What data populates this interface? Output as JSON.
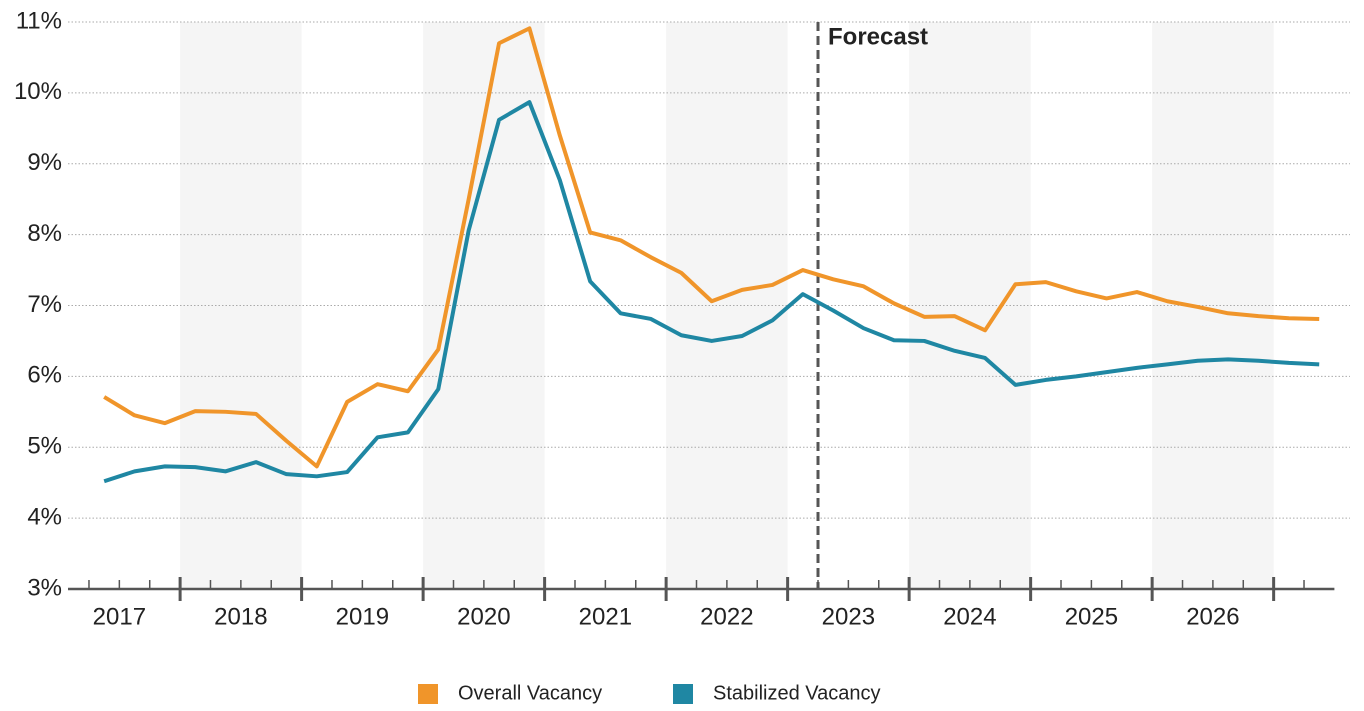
{
  "chart_data": {
    "type": "line",
    "annotation": "Forecast",
    "forecast_x": 2023.25,
    "x": [
      2017.375,
      2017.625,
      2017.875,
      2018.125,
      2018.375,
      2018.625,
      2018.875,
      2019.125,
      2019.375,
      2019.625,
      2019.875,
      2020.125,
      2020.375,
      2020.625,
      2020.875,
      2021.125,
      2021.375,
      2021.625,
      2021.875,
      2022.125,
      2022.375,
      2022.625,
      2022.875,
      2023.125,
      2023.375,
      2023.625,
      2023.875,
      2024.125,
      2024.375,
      2024.625,
      2024.875,
      2025.125,
      2025.375,
      2025.625,
      2025.875,
      2026.125,
      2026.375,
      2026.625,
      2026.875,
      2027.125,
      2027.375
    ],
    "series": [
      {
        "name": "Overall Vacancy",
        "color": "#f0952a",
        "values": [
          5.71,
          5.45,
          5.34,
          5.51,
          5.5,
          5.47,
          5.09,
          4.73,
          5.64,
          5.89,
          5.79,
          6.38,
          8.5,
          10.7,
          10.91,
          9.4,
          8.03,
          7.92,
          7.68,
          7.46,
          7.06,
          7.22,
          7.29,
          7.5,
          7.37,
          7.27,
          7.03,
          6.84,
          6.85,
          6.65,
          7.3,
          7.33,
          7.2,
          7.1,
          7.19,
          7.06,
          6.98,
          6.89,
          6.85,
          6.82,
          6.81
        ]
      },
      {
        "name": "Stabilized Vacancy",
        "color": "#1f87a3",
        "values": [
          4.52,
          4.66,
          4.73,
          4.72,
          4.66,
          4.79,
          4.62,
          4.59,
          4.65,
          5.14,
          5.21,
          5.82,
          8.06,
          9.62,
          9.87,
          8.77,
          7.34,
          6.89,
          6.81,
          6.58,
          6.5,
          6.57,
          6.79,
          7.16,
          6.93,
          6.68,
          6.51,
          6.5,
          6.36,
          6.26,
          5.88,
          5.95,
          6.0,
          6.06,
          6.12,
          6.17,
          6.22,
          6.24,
          6.22,
          6.19,
          6.17
        ]
      }
    ],
    "categories": [
      "2017",
      "2018",
      "2019",
      "2020",
      "2021",
      "2022",
      "2023",
      "2024",
      "2025",
      "2026"
    ],
    "xlim": [
      2017,
      2027.5
    ],
    "xticks": [
      2018,
      2019,
      2020,
      2021,
      2022,
      2023,
      2024,
      2025,
      2026,
      2027
    ],
    "xticks_minor": [
      2017.25,
      2017.5,
      2017.75,
      2018.25,
      2018.5,
      2018.75,
      2019.25,
      2019.5,
      2019.75,
      2020.25,
      2020.5,
      2020.75,
      2021.25,
      2021.5,
      2021.75,
      2022.25,
      2022.5,
      2022.75,
      2023.25,
      2023.5,
      2023.75,
      2024.25,
      2024.5,
      2024.75,
      2025.25,
      2025.5,
      2025.75,
      2026.25,
      2026.5,
      2026.75,
      2027.25
    ],
    "ylim": [
      3,
      11
    ],
    "yticks": [
      {
        "value": 3,
        "label": "3%"
      },
      {
        "value": 4,
        "label": "4%"
      },
      {
        "value": 5,
        "label": "5%"
      },
      {
        "value": 6,
        "label": "6%"
      },
      {
        "value": 7,
        "label": "7%"
      },
      {
        "value": 8,
        "label": "8%"
      },
      {
        "value": 9,
        "label": "9%"
      },
      {
        "value": 10,
        "label": "10%"
      },
      {
        "value": 11,
        "label": "11%"
      }
    ],
    "grid": true,
    "legend": "bottom"
  }
}
